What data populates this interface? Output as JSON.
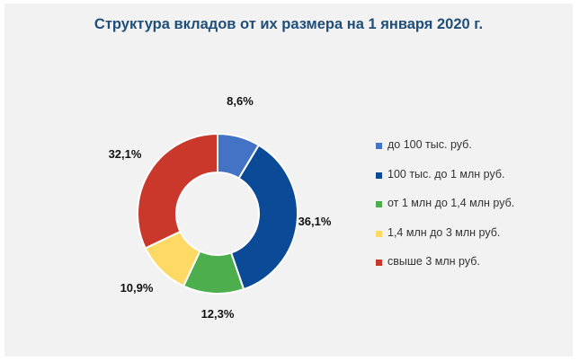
{
  "chart_data": {
    "type": "pie",
    "title": "Структура вкладов от их размера на 1 января 2020 г.",
    "categories": [
      "до 100 тыс. руб.",
      "100 тыс. до 1 млн руб.",
      "от 1 млн до 1,4 млн руб.",
      "1,4 млн до 3 млн руб.",
      "свыше 3 млн руб."
    ],
    "values": [
      8.6,
      36.1,
      12.3,
      10.9,
      32.1
    ],
    "labels": [
      "8,6%",
      "36,1%",
      "12,3%",
      "10,9%",
      "32,1%"
    ],
    "colors": [
      "#4472c4",
      "#0b4a96",
      "#4cae4c",
      "#ffd966",
      "#c9382a"
    ],
    "donut": true,
    "legend_position": "right"
  }
}
